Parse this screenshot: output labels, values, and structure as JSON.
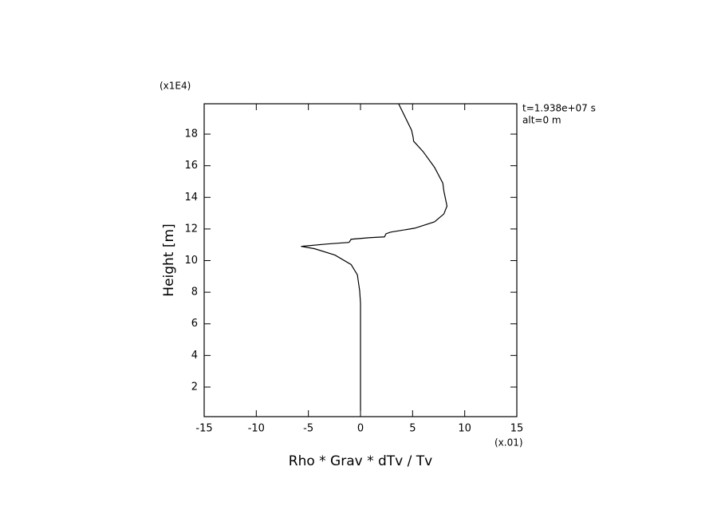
{
  "chart_data": {
    "type": "line",
    "xlabel": "Rho * Grav * dTv / Tv",
    "ylabel": "Height [m]",
    "xscale_label": "(x.01)",
    "yscale_label": "(x1E4)",
    "annotations": [
      "t=1.938e+07 s",
      "alt=0 m"
    ],
    "xlim": [
      -15,
      15
    ],
    "ylim": [
      0.13,
      19.92
    ],
    "xticks": [
      -15,
      -10,
      -5,
      0,
      5,
      10,
      15
    ],
    "yticks": [
      2,
      4,
      6,
      8,
      10,
      12,
      14,
      16,
      18
    ],
    "series": [
      {
        "color": "#000000",
        "x": [
          3.67,
          4.9,
          5.05,
          5.1,
          6.0,
          7.1,
          7.9,
          8.0,
          8.3,
          8.0,
          7.1,
          5.2,
          2.9,
          2.45,
          2.3,
          0.9,
          -0.9,
          -1.1,
          -3.2,
          -5.7,
          -4.4,
          -2.45,
          -0.9,
          -0.3,
          -0.08,
          0,
          0
        ],
        "y": [
          19.9,
          18.25,
          17.8,
          17.55,
          16.9,
          15.9,
          14.9,
          14.4,
          13.45,
          12.95,
          12.45,
          12.05,
          11.8,
          11.7,
          11.5,
          11.45,
          11.35,
          11.15,
          11.05,
          10.9,
          10.75,
          10.35,
          9.75,
          9.1,
          8.1,
          7.3,
          0.5
        ]
      }
    ]
  }
}
